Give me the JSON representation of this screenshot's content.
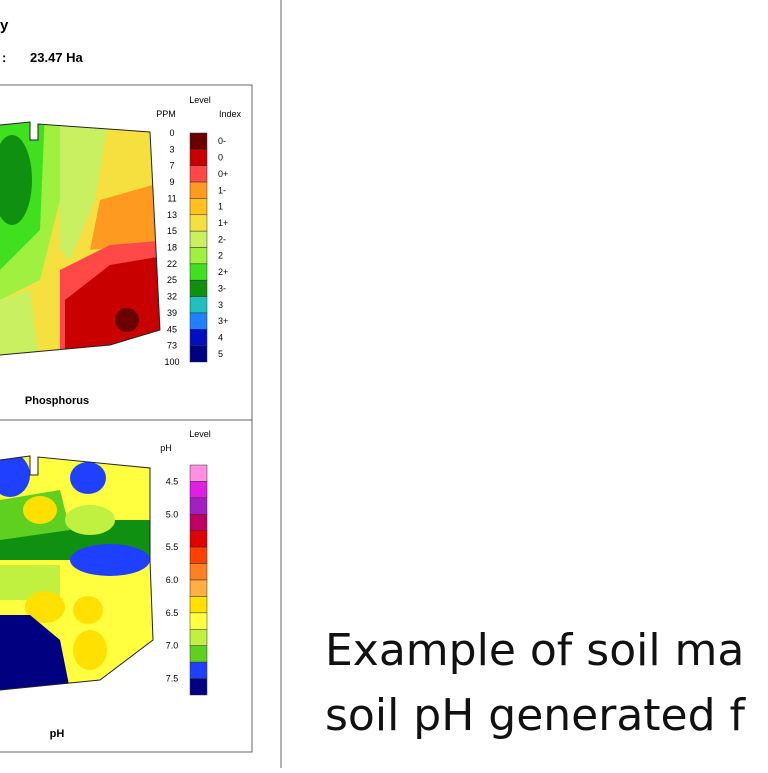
{
  "header": {
    "title": "y",
    "area_label": ":",
    "area": "23.47 Ha"
  },
  "maps": [
    {
      "legend_title": "Level",
      "columns": [
        "PPM",
        "Index"
      ],
      "scale": [
        "0",
        "3",
        "7",
        "9",
        "11",
        "13",
        "15",
        "18",
        "22",
        "25",
        "32",
        "39",
        "45",
        "73",
        "100"
      ],
      "index": [
        "0-",
        "0",
        "0+",
        "1-",
        "1",
        "1+",
        "2-",
        "2",
        "2+",
        "3-",
        "3",
        "3+",
        "4",
        "5"
      ],
      "colors": [
        "#6b0000",
        "#c80000",
        "#ff4848",
        "#ff9a20",
        "#ffc020",
        "#f5e040",
        "#c8f060",
        "#a0f040",
        "#40e020",
        "#109010",
        "#20c0c0",
        "#2080ff",
        "#0010c0",
        "#000080"
      ],
      "caption": "Phosphorus"
    },
    {
      "legend_title": "Level",
      "columns": [
        "pH"
      ],
      "scale": [
        "4.5",
        "5.0",
        "5.5",
        "6.0",
        "6.5",
        "7.0",
        "7.5"
      ],
      "colors": [
        "#ff90e0",
        "#e020e0",
        "#a020c0",
        "#c00060",
        "#e00000",
        "#ff4000",
        "#ff8020",
        "#ffb040",
        "#ffe000",
        "#ffff40",
        "#c0f040",
        "#60d020",
        "#2040ff",
        "#000080"
      ],
      "caption": "pH"
    }
  ],
  "caption": [
    "Example of soil ma",
    "soil pH generated f"
  ]
}
